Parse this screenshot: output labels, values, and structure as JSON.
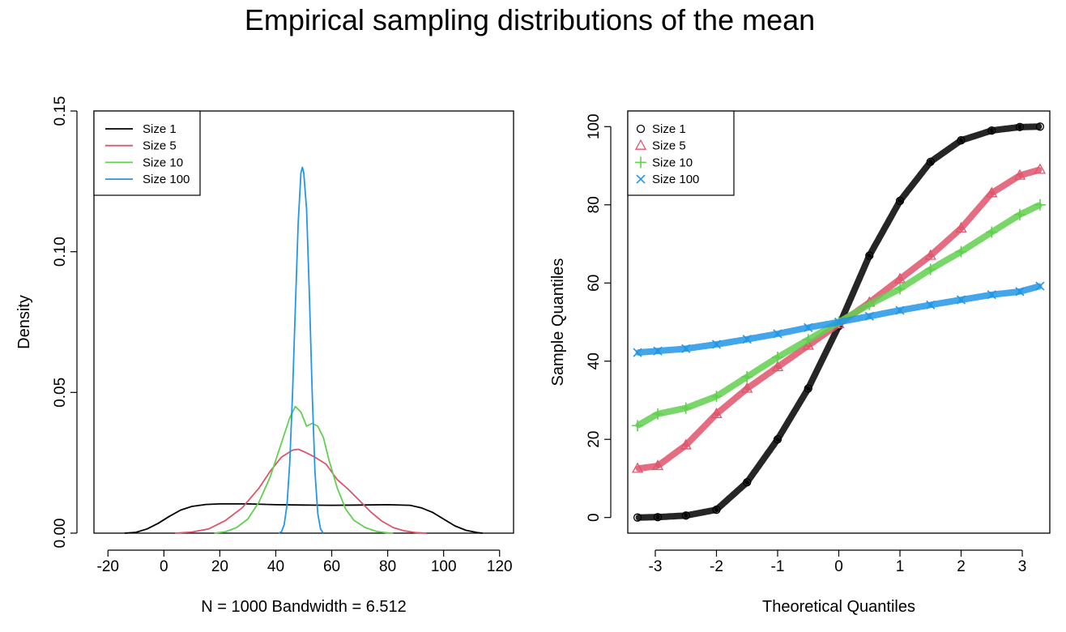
{
  "figure": {
    "title": "Empirical sampling distributions of the mean"
  },
  "colors": {
    "Size 1": "#000000",
    "Size 5": "#DF536B",
    "Size 10": "#61D04F",
    "Size 100": "#2297E6"
  },
  "chart_data": [
    {
      "type": "line",
      "subtype": "density",
      "xlabel": "N = 1000   Bandwidth = 6.512",
      "ylabel": "Density",
      "xlim": [
        -25,
        125
      ],
      "ylim": [
        0,
        0.15
      ],
      "xticks": [
        -20,
        0,
        20,
        40,
        60,
        80,
        100,
        120
      ],
      "yticks": [
        0.0,
        0.05,
        0.1,
        0.15
      ],
      "xtick_labels": [
        "-20",
        "0",
        "20",
        "40",
        "60",
        "80",
        "100",
        "120"
      ],
      "ytick_labels": [
        "0.00",
        "0.05",
        "0.10",
        "0.15"
      ],
      "legend": {
        "position": "top-left",
        "entries": [
          "Size 1",
          "Size 5",
          "Size 10",
          "Size 100"
        ]
      },
      "series": [
        {
          "name": "Size 1",
          "color": "#000000",
          "points": [
            [
              -14,
              0
            ],
            [
              -10,
              0.0003
            ],
            [
              -6,
              0.0015
            ],
            [
              -2,
              0.0035
            ],
            [
              2,
              0.006
            ],
            [
              6,
              0.0082
            ],
            [
              10,
              0.0095
            ],
            [
              15,
              0.0102
            ],
            [
              20,
              0.0104
            ],
            [
              30,
              0.0104
            ],
            [
              40,
              0.0101
            ],
            [
              50,
              0.01
            ],
            [
              60,
              0.0099
            ],
            [
              70,
              0.01
            ],
            [
              80,
              0.0101
            ],
            [
              88,
              0.0099
            ],
            [
              92,
              0.009
            ],
            [
              96,
              0.0074
            ],
            [
              100,
              0.005
            ],
            [
              104,
              0.0026
            ],
            [
              108,
              0.001
            ],
            [
              112,
              0.0002
            ],
            [
              114,
              0
            ]
          ]
        },
        {
          "name": "Size 5",
          "color": "#DF536B",
          "points": [
            [
              4,
              0
            ],
            [
              10,
              0.0004
            ],
            [
              16,
              0.0015
            ],
            [
              22,
              0.0045
            ],
            [
              28,
              0.009
            ],
            [
              34,
              0.016
            ],
            [
              38,
              0.022
            ],
            [
              42,
              0.027
            ],
            [
              46,
              0.0295
            ],
            [
              48,
              0.0298
            ],
            [
              50,
              0.029
            ],
            [
              54,
              0.027
            ],
            [
              58,
              0.0245
            ],
            [
              62,
              0.019
            ],
            [
              66,
              0.0155
            ],
            [
              70,
              0.0115
            ],
            [
              74,
              0.0075
            ],
            [
              78,
              0.0042
            ],
            [
              82,
              0.002
            ],
            [
              86,
              0.0008
            ],
            [
              90,
              0.0002
            ],
            [
              94,
              0
            ]
          ]
        },
        {
          "name": "Size 10",
          "color": "#61D04F",
          "points": [
            [
              18,
              0
            ],
            [
              22,
              0.0005
            ],
            [
              26,
              0.002
            ],
            [
              30,
              0.005
            ],
            [
              34,
              0.011
            ],
            [
              38,
              0.02
            ],
            [
              42,
              0.032
            ],
            [
              45,
              0.041
            ],
            [
              47,
              0.045
            ],
            [
              49,
              0.043
            ],
            [
              51,
              0.038
            ],
            [
              53,
              0.039
            ],
            [
              55,
              0.038
            ],
            [
              57,
              0.034
            ],
            [
              59,
              0.026
            ],
            [
              62,
              0.016
            ],
            [
              65,
              0.0085
            ],
            [
              68,
              0.0045
            ],
            [
              72,
              0.002
            ],
            [
              76,
              0.0006
            ],
            [
              80,
              0.0001
            ],
            [
              82,
              0
            ]
          ]
        },
        {
          "name": "Size 100",
          "color": "#2297E6",
          "points": [
            [
              41,
              0
            ],
            [
              42,
              0.0005
            ],
            [
              43,
              0.003
            ],
            [
              44,
              0.01
            ],
            [
              45,
              0.025
            ],
            [
              46,
              0.05
            ],
            [
              47,
              0.08
            ],
            [
              48,
              0.11
            ],
            [
              49,
              0.128
            ],
            [
              49.5,
              0.13
            ],
            [
              50,
              0.128
            ],
            [
              51,
              0.115
            ],
            [
              52,
              0.085
            ],
            [
              53,
              0.05
            ],
            [
              54,
              0.022
            ],
            [
              55,
              0.007
            ],
            [
              56,
              0.0015
            ],
            [
              57,
              0
            ]
          ]
        }
      ]
    },
    {
      "type": "scatter",
      "subtype": "normal Q-Q",
      "xlabel": "Theoretical Quantiles",
      "ylabel": "Sample Quantiles",
      "xlim": [
        -3.45,
        3.45
      ],
      "ylim": [
        -4,
        104
      ],
      "xticks": [
        -3,
        -2,
        -1,
        0,
        1,
        2,
        3
      ],
      "yticks": [
        0,
        20,
        40,
        60,
        80,
        100
      ],
      "xtick_labels": [
        "-3",
        "-2",
        "-1",
        "0",
        "1",
        "2",
        "3"
      ],
      "ytick_labels": [
        "0",
        "20",
        "40",
        "60",
        "80",
        "100"
      ],
      "legend": {
        "position": "top-left",
        "entries": [
          "Size 1",
          "Size 5",
          "Size 10",
          "Size 100"
        ]
      },
      "series": [
        {
          "name": "Size 1",
          "color": "#000000",
          "marker": "circle",
          "points": [
            [
              -3.29,
              0.0
            ],
            [
              -2.96,
              0.1
            ],
            [
              -2.5,
              0.5
            ],
            [
              -2.0,
              2.0
            ],
            [
              -1.5,
              9
            ],
            [
              -1.0,
              20
            ],
            [
              -0.5,
              33
            ],
            [
              0.0,
              49
            ],
            [
              0.5,
              67
            ],
            [
              1.0,
              81
            ],
            [
              1.5,
              91
            ],
            [
              2.0,
              96.5
            ],
            [
              2.5,
              99
            ],
            [
              2.96,
              99.9
            ],
            [
              3.29,
              100
            ]
          ]
        },
        {
          "name": "Size 5",
          "color": "#DF536B",
          "marker": "triangle",
          "points": [
            [
              -3.29,
              12.5
            ],
            [
              -2.96,
              13.2
            ],
            [
              -2.5,
              18.5
            ],
            [
              -2.0,
              26.5
            ],
            [
              -1.5,
              33
            ],
            [
              -1.0,
              38.5
            ],
            [
              -0.5,
              44
            ],
            [
              0.0,
              49.5
            ],
            [
              0.5,
              55
            ],
            [
              1.0,
              61
            ],
            [
              1.5,
              67
            ],
            [
              2.0,
              74
            ],
            [
              2.5,
              83
            ],
            [
              2.96,
              87.5
            ],
            [
              3.29,
              89
            ]
          ]
        },
        {
          "name": "Size 10",
          "color": "#61D04F",
          "marker": "plus",
          "points": [
            [
              -3.29,
              23.5
            ],
            [
              -2.96,
              26.5
            ],
            [
              -2.5,
              28
            ],
            [
              -2.0,
              31
            ],
            [
              -1.5,
              36
            ],
            [
              -1.0,
              41
            ],
            [
              -0.5,
              45.5
            ],
            [
              0.0,
              50
            ],
            [
              0.5,
              54.5
            ],
            [
              1.0,
              58.5
            ],
            [
              1.5,
              63.5
            ],
            [
              2.0,
              68
            ],
            [
              2.5,
              73
            ],
            [
              2.96,
              77.5
            ],
            [
              3.29,
              80
            ]
          ]
        },
        {
          "name": "Size 100",
          "color": "#2297E6",
          "marker": "x",
          "points": [
            [
              -3.29,
              42.2
            ],
            [
              -2.96,
              42.6
            ],
            [
              -2.5,
              43.2
            ],
            [
              -2.0,
              44.3
            ],
            [
              -1.5,
              45.6
            ],
            [
              -1.0,
              47.0
            ],
            [
              -0.5,
              48.6
            ],
            [
              0.0,
              50.0
            ],
            [
              0.5,
              51.5
            ],
            [
              1.0,
              53.0
            ],
            [
              1.5,
              54.4
            ],
            [
              2.0,
              55.7
            ],
            [
              2.5,
              57.0
            ],
            [
              2.96,
              57.8
            ],
            [
              3.29,
              59.2
            ]
          ]
        }
      ]
    }
  ]
}
